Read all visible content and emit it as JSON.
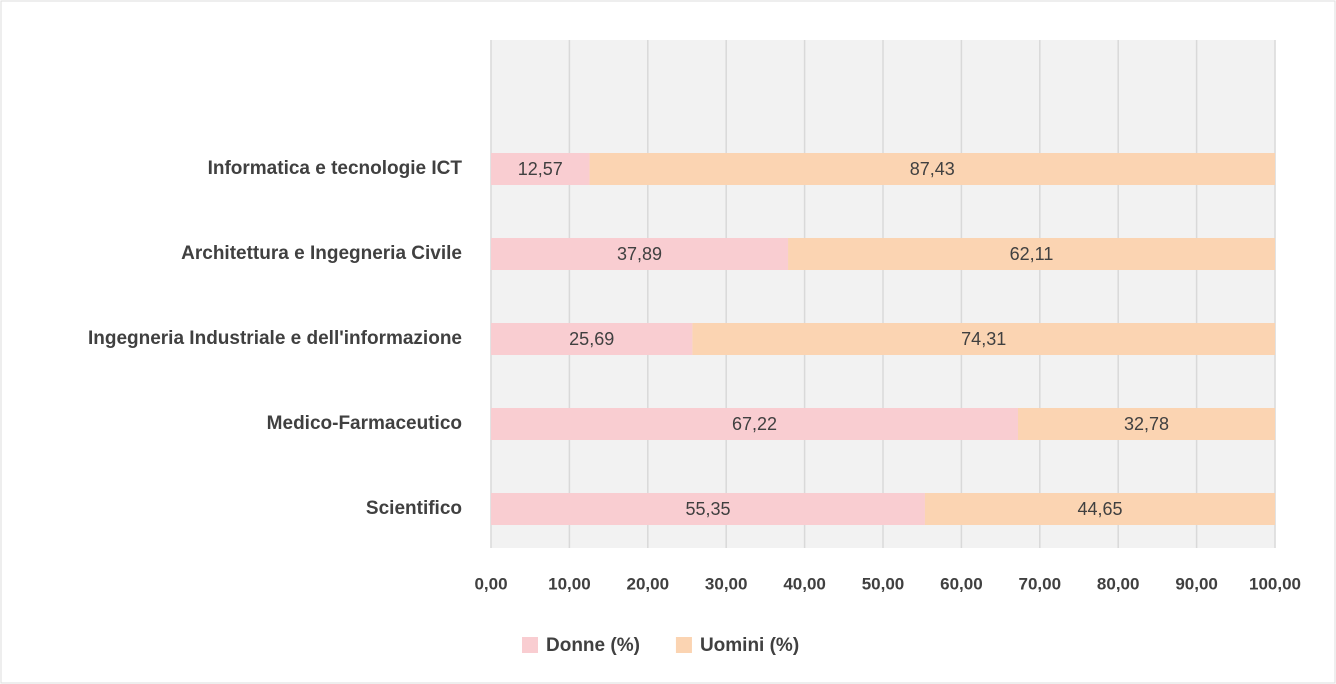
{
  "chart_data": {
    "type": "stacked-barh",
    "categories": [
      "Informatica e tecnologie ICT",
      "Architettura e Ingegneria Civile",
      "Ingegneria Industriale e dell'informazione",
      "Medico-Farmaceutico",
      "Scientifico"
    ],
    "series": [
      {
        "name": "Donne (%)",
        "color": "#f9cdd1",
        "values": [
          12.57,
          37.89,
          25.69,
          67.22,
          55.35
        ],
        "value_labels": [
          "12,57",
          "37,89",
          "25,69",
          "67,22",
          "55,35"
        ]
      },
      {
        "name": "Uomini (%)",
        "color": "#fbd4b2",
        "values": [
          87.43,
          62.11,
          74.31,
          32.78,
          44.65
        ],
        "value_labels": [
          "87,43",
          "62,11",
          "74,31",
          "32,78",
          "44,65"
        ]
      }
    ],
    "xlim": [
      0,
      100
    ],
    "xticks": [
      {
        "value": 0,
        "label": "0,00"
      },
      {
        "value": 10,
        "label": "10,00"
      },
      {
        "value": 20,
        "label": "20,00"
      },
      {
        "value": 30,
        "label": "30,00"
      },
      {
        "value": 40,
        "label": "40,00"
      },
      {
        "value": 50,
        "label": "50,00"
      },
      {
        "value": 60,
        "label": "60,00"
      },
      {
        "value": 70,
        "label": "70,00"
      },
      {
        "value": 80,
        "label": "80,00"
      },
      {
        "value": 90,
        "label": "90,00"
      },
      {
        "value": 100,
        "label": "100,00"
      }
    ],
    "grid": true,
    "legend": "bottom"
  }
}
